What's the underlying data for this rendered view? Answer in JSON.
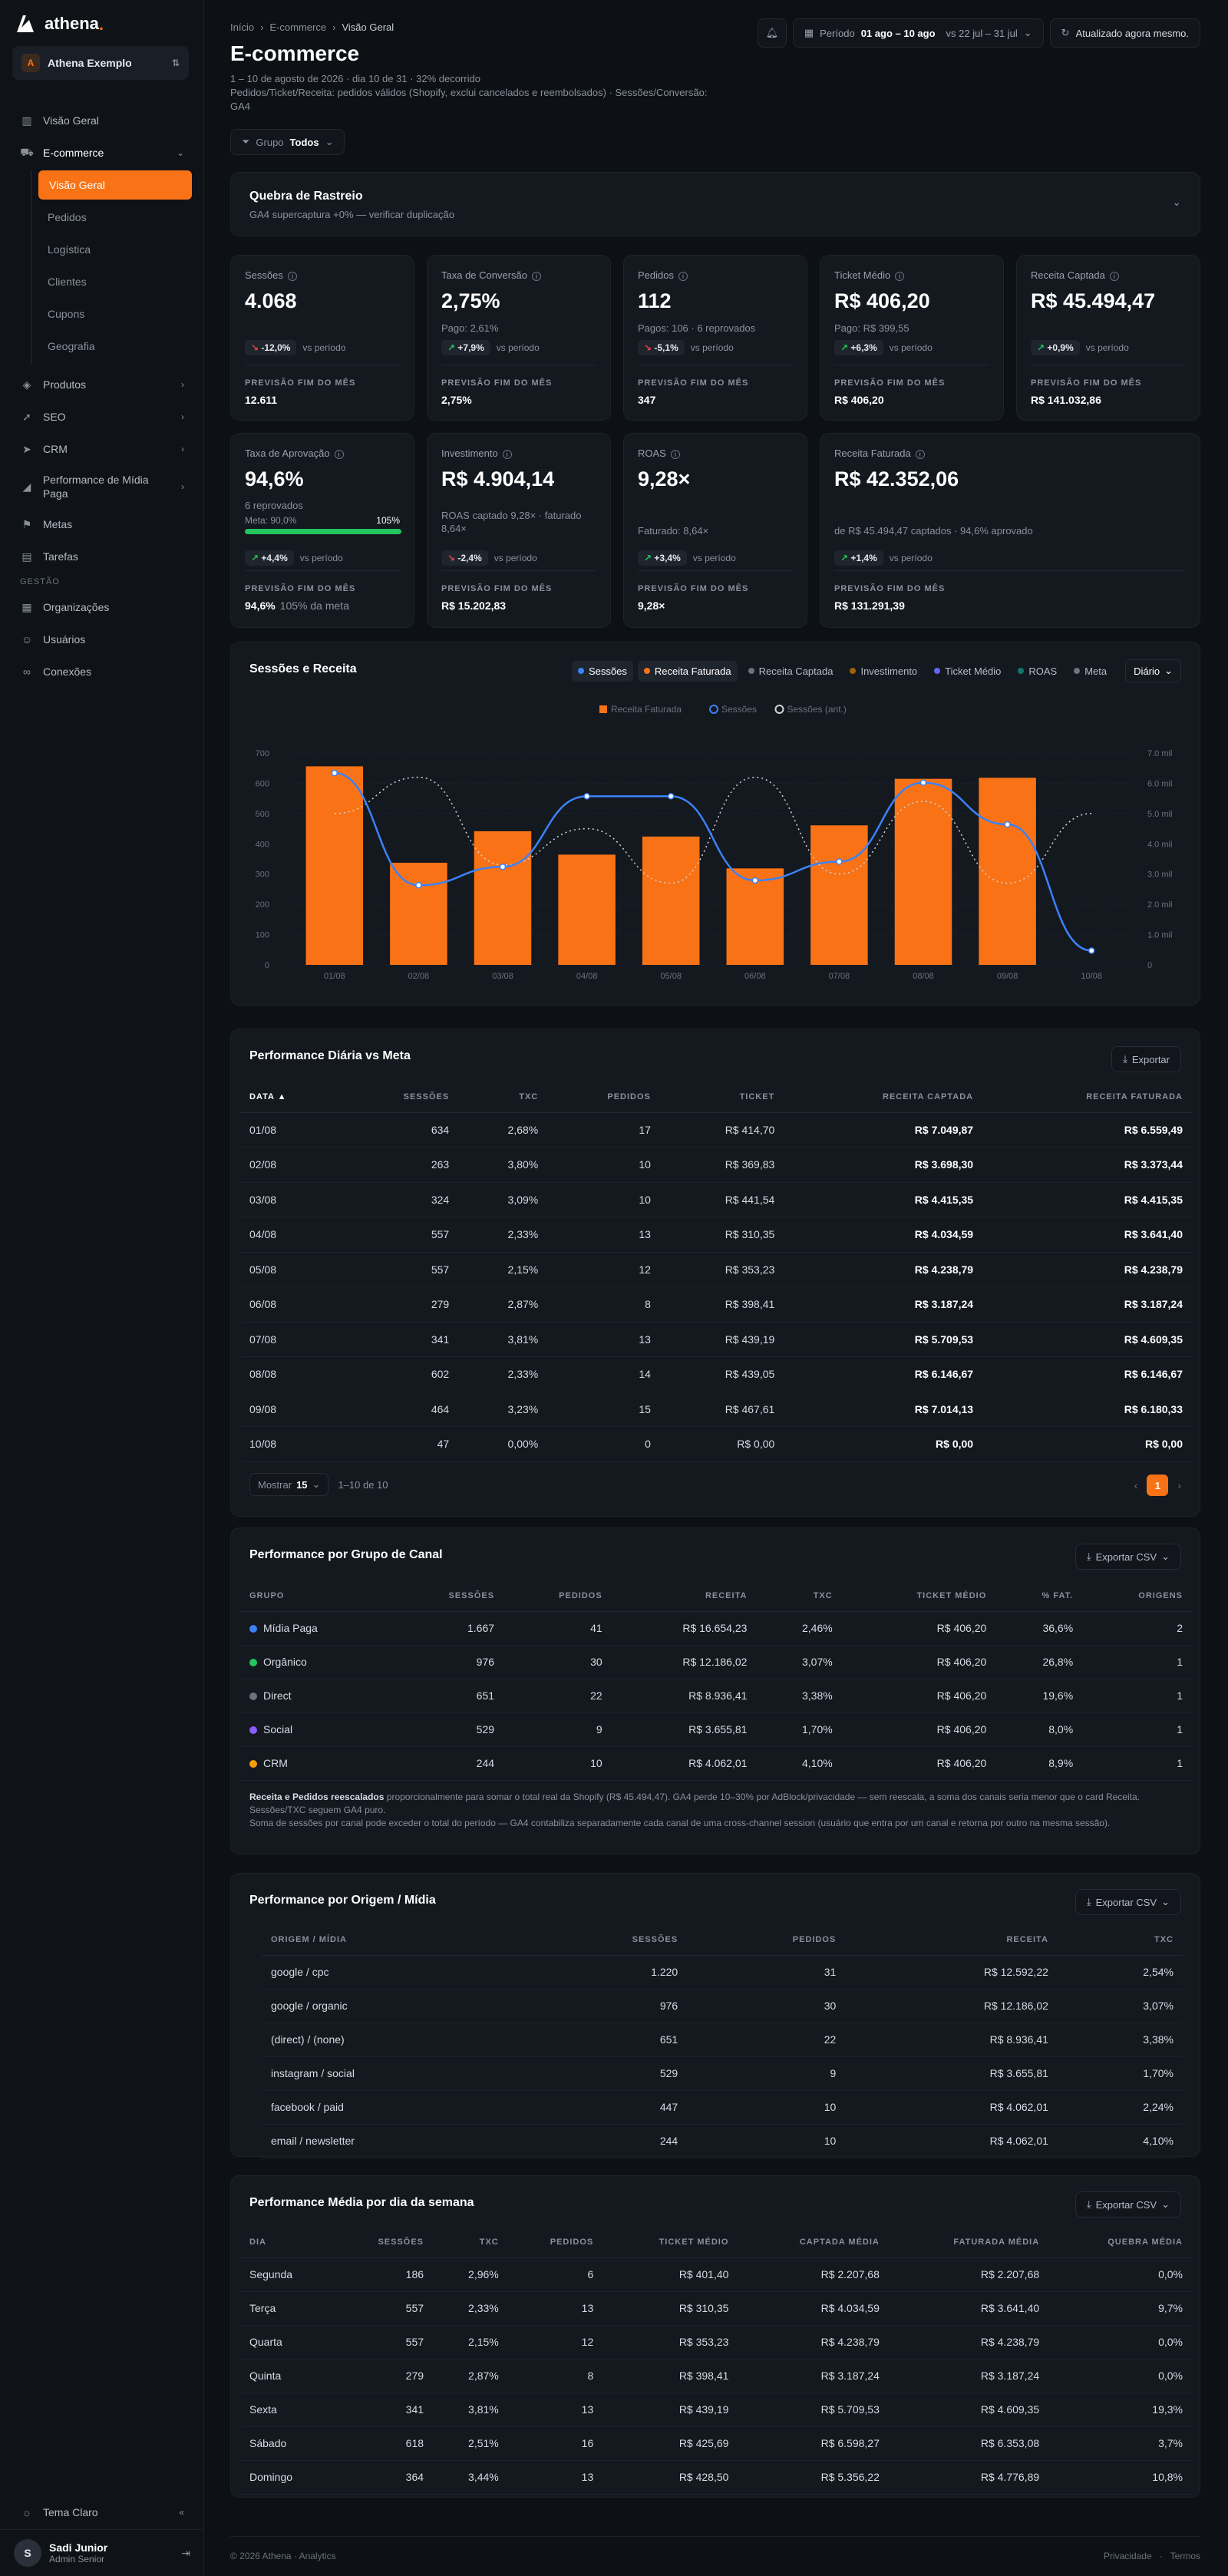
{
  "brand": {
    "name": "athena",
    "dot": "."
  },
  "org": {
    "name": "Athena Exemplo",
    "initial": "A"
  },
  "nav": {
    "visao_geral": "Visão Geral",
    "ecommerce": "E-commerce",
    "sub": [
      "Visão Geral",
      "Pedidos",
      "Logística",
      "Clientes",
      "Cupons",
      "Geografia"
    ],
    "produtos": "Produtos",
    "seo": "SEO",
    "crm": "CRM",
    "midia": "Performance de Mídia Paga",
    "metas": "Metas",
    "tarefas": "Tarefas",
    "gestao": "GESTÃO",
    "organizacoes": "Organizações",
    "usuarios": "Usuários",
    "conexoes": "Conexões",
    "tema": "Tema Claro"
  },
  "user": {
    "name": "Sadi Junior",
    "role": "Admin Senior",
    "initial": "S"
  },
  "breadcrumb": [
    "Início",
    "E-commerce",
    "Visão Geral"
  ],
  "header": {
    "title": "E-commerce",
    "subtitle": "1 – 10 de agosto de 2026 · dia 10 de 31 · 32% decorrido",
    "note": "Pedidos/Ticket/Receita: pedidos válidos (Shopify, exclui cancelados e reembolsados) · Sessões/Conversão: GA4",
    "period_label": "Período",
    "period": "01 ago – 10 ago",
    "compare": "vs 22 jul – 31 jul",
    "updated": "Atualizado agora mesmo."
  },
  "filter": {
    "label": "Grupo",
    "value": "Todos"
  },
  "alert": {
    "title": "Quebra de Rastreio",
    "text": "GA4 supercaptura +0% — verificar duplicação"
  },
  "kpis": [
    {
      "label": "Sessões",
      "value": "4.068",
      "extra": "",
      "delta": "-12,0%",
      "dir": "dn",
      "vs": "vs período",
      "proj_label": "PREVISÃO FIM DO MÊS",
      "proj": "12.611",
      "proj_extra": ""
    },
    {
      "label": "Taxa de Conversão",
      "value": "2,75%",
      "extra": "Pago: 2,61%",
      "delta": "+7,9%",
      "dir": "up",
      "vs": "vs período",
      "proj_label": "PREVISÃO FIM DO MÊS",
      "proj": "2,75%",
      "proj_extra": ""
    },
    {
      "label": "Pedidos",
      "value": "112",
      "extra": "Pagos: 106 · 6 reprovados",
      "delta": "-5,1%",
      "dir": "dn",
      "vs": "vs período",
      "proj_label": "PREVISÃO FIM DO MÊS",
      "proj": "347",
      "proj_extra": ""
    },
    {
      "label": "Ticket Médio",
      "value": "R$ 406,20",
      "extra": "Pago: R$ 399,55",
      "delta": "+6,3%",
      "dir": "up",
      "vs": "vs período",
      "proj_label": "PREVISÃO FIM DO MÊS",
      "proj": "R$ 406,20",
      "proj_extra": ""
    },
    {
      "label": "Receita Captada",
      "value": "R$ 45.494,47",
      "extra": "",
      "delta": "+0,9%",
      "dir": "up",
      "vs": "vs período",
      "proj_label": "PREVISÃO FIM DO MÊS",
      "proj": "R$ 141.032,86",
      "proj_extra": ""
    },
    {
      "label": "Taxa de Aprovação",
      "value": "94,6%",
      "extra": "6 reprovados",
      "meta": "Meta: 90,0%",
      "meta_pct": "105%",
      "delta": "+4,4%",
      "dir": "up",
      "vs": "vs período",
      "proj_label": "PREVISÃO FIM DO MÊS",
      "proj": "94,6%",
      "proj_extra": "105% da meta"
    },
    {
      "label": "Investimento",
      "value": "R$ 4.904,14",
      "extra": "ROAS captado 9,28× · faturado 8,64×",
      "delta": "-2,4%",
      "dir": "dn",
      "vs": "vs período",
      "proj_label": "PREVISÃO FIM DO MÊS",
      "proj": "R$ 15.202,83",
      "proj_extra": ""
    },
    {
      "label": "ROAS",
      "value": "9,28×",
      "extra": "Faturado: 8,64×",
      "delta": "+3,4%",
      "dir": "up",
      "vs": "vs período",
      "proj_label": "PREVISÃO FIM DO MÊS",
      "proj": "9,28×",
      "proj_extra": ""
    },
    {
      "label": "Receita Faturada",
      "value": "R$ 42.352,06",
      "extra": "de R$ 45.494,47 captados · 94,6% aprovado",
      "delta": "+1,4%",
      "dir": "up",
      "vs": "vs período",
      "proj_label": "PREVISÃO FIM DO MÊS",
      "proj": "R$ 131.291,39",
      "proj_extra": ""
    }
  ],
  "chart_panel": {
    "title": "Sessões e Receita",
    "toggles": [
      "Sessões",
      "Receita Faturada",
      "Receita Captada",
      "Investimento",
      "Ticket Médio",
      "ROAS",
      "Meta"
    ],
    "toggle_colors": [
      "#3b82f6",
      "#f97316",
      "#6b7280",
      "#a16207",
      "#6366f1",
      "#0f766e",
      "#6b7280"
    ],
    "granularity": "Diário"
  },
  "chart_data": {
    "type": "bar",
    "categories": [
      "01/08",
      "02/08",
      "03/08",
      "04/08",
      "05/08",
      "06/08",
      "07/08",
      "08/08",
      "09/08",
      "10/08"
    ],
    "series": [
      {
        "name": "Receita Faturada",
        "axis": "right",
        "values": [
          6559.49,
          3373.44,
          4415.35,
          3641.4,
          4238.79,
          3187.24,
          4609.35,
          6146.67,
          6180.33,
          0
        ]
      },
      {
        "name": "Sessões",
        "axis": "left",
        "values": [
          634,
          263,
          324,
          557,
          557,
          279,
          341,
          602,
          464,
          47
        ]
      },
      {
        "name": "Sessões (ant.)",
        "axis": "left",
        "values": [
          500,
          620,
          330,
          450,
          270,
          620,
          300,
          540,
          270,
          500
        ]
      }
    ],
    "ylim_left": [
      0,
      700
    ],
    "yticks_left": [
      "0",
      "100",
      "200",
      "300",
      "400",
      "500",
      "600",
      "700"
    ],
    "ylim_right": [
      0,
      7000
    ],
    "yticks_right": [
      "0",
      "1.0 mil",
      "2.0 mil",
      "3.0 mil",
      "4.0 mil",
      "5.0 mil",
      "6.0 mil",
      "7.0 mil"
    ],
    "colors": {
      "bar": "#f97316",
      "line": "#3b82f6",
      "prev": "#d1d5db"
    }
  },
  "daily": {
    "title": "Performance Diária vs Meta",
    "export": "Exportar",
    "headers": [
      "DATA ▲",
      "SESSÕES",
      "TXC",
      "PEDIDOS",
      "TICKET",
      "RECEITA CAPTADA",
      "RECEITA FATURADA"
    ],
    "rows": [
      [
        "01/08",
        "634",
        "2,68%",
        "17",
        "R$ 414,70",
        "R$ 7.049,87",
        "R$ 6.559,49"
      ],
      [
        "02/08",
        "263",
        "3,80%",
        "10",
        "R$ 369,83",
        "R$ 3.698,30",
        "R$ 3.373,44"
      ],
      [
        "03/08",
        "324",
        "3,09%",
        "10",
        "R$ 441,54",
        "R$ 4.415,35",
        "R$ 4.415,35"
      ],
      [
        "04/08",
        "557",
        "2,33%",
        "13",
        "R$ 310,35",
        "R$ 4.034,59",
        "R$ 3.641,40"
      ],
      [
        "05/08",
        "557",
        "2,15%",
        "12",
        "R$ 353,23",
        "R$ 4.238,79",
        "R$ 4.238,79"
      ],
      [
        "06/08",
        "279",
        "2,87%",
        "8",
        "R$ 398,41",
        "R$ 3.187,24",
        "R$ 3.187,24"
      ],
      [
        "07/08",
        "341",
        "3,81%",
        "13",
        "R$ 439,19",
        "R$ 5.709,53",
        "R$ 4.609,35"
      ],
      [
        "08/08",
        "602",
        "2,33%",
        "14",
        "R$ 439,05",
        "R$ 6.146,67",
        "R$ 6.146,67"
      ],
      [
        "09/08",
        "464",
        "3,23%",
        "15",
        "R$ 467,61",
        "R$ 7.014,13",
        "R$ 6.180,33"
      ],
      [
        "10/08",
        "47",
        "0,00%",
        "0",
        "R$ 0,00",
        "R$ 0,00",
        "R$ 0,00"
      ]
    ],
    "show_label": "Mostrar",
    "show": "15",
    "range": "1–10 de 10",
    "page": "1"
  },
  "channel": {
    "title": "Performance por Grupo de Canal",
    "export": "Exportar CSV",
    "headers": [
      "GRUPO",
      "SESSÕES",
      "PEDIDOS",
      "RECEITA",
      "TXC",
      "TICKET MÉDIO",
      "% FAT.",
      "ORIGENS"
    ],
    "rows": [
      {
        "color": "#3b82f6",
        "cells": [
          "Mídia Paga",
          "1.667",
          "41",
          "R$ 16.654,23",
          "2,46%",
          "R$ 406,20",
          "36,6%",
          "2"
        ]
      },
      {
        "color": "#22c55e",
        "cells": [
          "Orgânico",
          "976",
          "30",
          "R$ 12.186,02",
          "3,07%",
          "R$ 406,20",
          "26,8%",
          "1"
        ]
      },
      {
        "color": "#6b7280",
        "cells": [
          "Direct",
          "651",
          "22",
          "R$ 8.936,41",
          "3,38%",
          "R$ 406,20",
          "19,6%",
          "1"
        ]
      },
      {
        "color": "#8b5cf6",
        "cells": [
          "Social",
          "529",
          "9",
          "R$ 3.655,81",
          "1,70%",
          "R$ 406,20",
          "8,0%",
          "1"
        ]
      },
      {
        "color": "#f59e0b",
        "cells": [
          "CRM",
          "244",
          "10",
          "R$ 4.062,01",
          "4,10%",
          "R$ 406,20",
          "8,9%",
          "1"
        ]
      }
    ],
    "note_bold": "Receita e Pedidos reescalados",
    "note1": " proporcionalmente para somar o total real da Shopify (R$ 45.494,47). GA4 perde 10–30% por AdBlock/privacidade — sem reescala, a soma dos canais seria menor que o card Receita. Sessões/TXC seguem GA4 puro.",
    "note2": "Soma de sessões por canal pode exceder o total do período — GA4 contabiliza separadamente cada canal de uma cross-channel session (usuário que entra por um canal e retorna por outro na mesma sessão)."
  },
  "origin": {
    "title": "Performance por Origem / Mídia",
    "export": "Exportar CSV",
    "headers": [
      "ORIGEM / MÍDIA",
      "SESSÕES",
      "PEDIDOS",
      "RECEITA",
      "TXC"
    ],
    "rows": [
      [
        "google / cpc",
        "1.220",
        "31",
        "R$ 12.592,22",
        "2,54%"
      ],
      [
        "google / organic",
        "976",
        "30",
        "R$ 12.186,02",
        "3,07%"
      ],
      [
        "(direct) / (none)",
        "651",
        "22",
        "R$ 8.936,41",
        "3,38%"
      ],
      [
        "instagram / social",
        "529",
        "9",
        "R$ 3.655,81",
        "1,70%"
      ],
      [
        "facebook / paid",
        "447",
        "10",
        "R$ 4.062,01",
        "2,24%"
      ],
      [
        "email / newsletter",
        "244",
        "10",
        "R$ 4.062,01",
        "4,10%"
      ]
    ]
  },
  "weekday": {
    "title": "Performance Média por dia da semana",
    "export": "Exportar CSV",
    "headers": [
      "DIA",
      "SESSÕES",
      "TXC",
      "PEDIDOS",
      "TICKET MÉDIO",
      "CAPTADA MÉDIA",
      "FATURADA MÉDIA",
      "QUEBRA MÉDIA"
    ],
    "rows": [
      [
        "Segunda",
        "186",
        "2,96%",
        "6",
        "R$ 401,40",
        "R$ 2.207,68",
        "R$ 2.207,68",
        "0,0%"
      ],
      [
        "Terça",
        "557",
        "2,33%",
        "13",
        "R$ 310,35",
        "R$ 4.034,59",
        "R$ 3.641,40",
        "9,7%"
      ],
      [
        "Quarta",
        "557",
        "2,15%",
        "12",
        "R$ 353,23",
        "R$ 4.238,79",
        "R$ 4.238,79",
        "0,0%"
      ],
      [
        "Quinta",
        "279",
        "2,87%",
        "8",
        "R$ 398,41",
        "R$ 3.187,24",
        "R$ 3.187,24",
        "0,0%"
      ],
      [
        "Sexta",
        "341",
        "3,81%",
        "13",
        "R$ 439,19",
        "R$ 5.709,53",
        "R$ 4.609,35",
        "19,3%"
      ],
      [
        "Sábado",
        "618",
        "2,51%",
        "16",
        "R$ 425,69",
        "R$ 6.598,27",
        "R$ 6.353,08",
        "3,7%"
      ],
      [
        "Domingo",
        "364",
        "3,44%",
        "13",
        "R$ 428,50",
        "R$ 5.356,22",
        "R$ 4.776,89",
        "10,8%"
      ]
    ]
  },
  "footer": {
    "copy": "© 2026 Athena · Analytics",
    "privacy": "Privacidade",
    "terms": "Termos"
  }
}
